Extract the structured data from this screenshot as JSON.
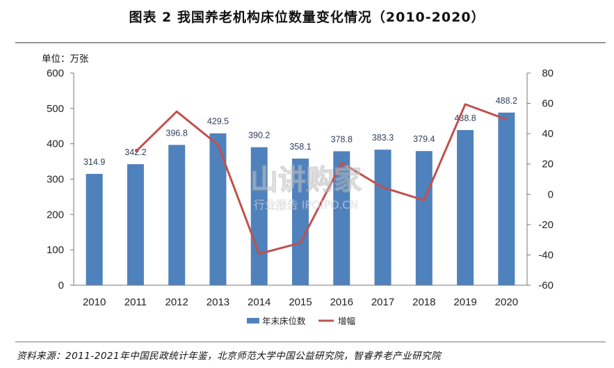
{
  "title": "图表 2 我国养老机构床位数量变化情况（2010-2020）",
  "source": "资料来源：2011-2021年中国民政统计年鉴，北京师范大学中国公益研究院，智睿养老产业研究院",
  "watermark": {
    "main": "山讲购家",
    "sub": "行业报告 IPOIPO.CN"
  },
  "chart_data": {
    "type": "bar",
    "unit_label": "单位：万张",
    "categories": [
      "2010",
      "2011",
      "2012",
      "2013",
      "2014",
      "2015",
      "2016",
      "2017",
      "2018",
      "2019",
      "2020"
    ],
    "series": [
      {
        "name": "年末床位数",
        "type": "bar",
        "axis": "left",
        "color": "#4f81bd",
        "values": [
          314.9,
          342.2,
          396.8,
          429.5,
          390.2,
          358.1,
          378.8,
          383.3,
          379.4,
          438.8,
          488.2
        ]
      },
      {
        "name": "增幅",
        "type": "line",
        "axis": "right",
        "color": "#c0504d",
        "values": [
          null,
          28,
          54.6,
          32.7,
          -39.3,
          -32.1,
          20.7,
          4.5,
          -3.9,
          59.4,
          49.4
        ]
      }
    ],
    "ylim_left": [
      0,
      600
    ],
    "yticks_left": [
      "0",
      "100",
      "200",
      "300",
      "400",
      "500",
      "600"
    ],
    "ylim_right": [
      -60,
      80
    ],
    "yticks_right": [
      "-60",
      "-40",
      "-20",
      "0",
      "20",
      "40",
      "60",
      "80"
    ],
    "grid": false,
    "legend_position": "bottom"
  }
}
